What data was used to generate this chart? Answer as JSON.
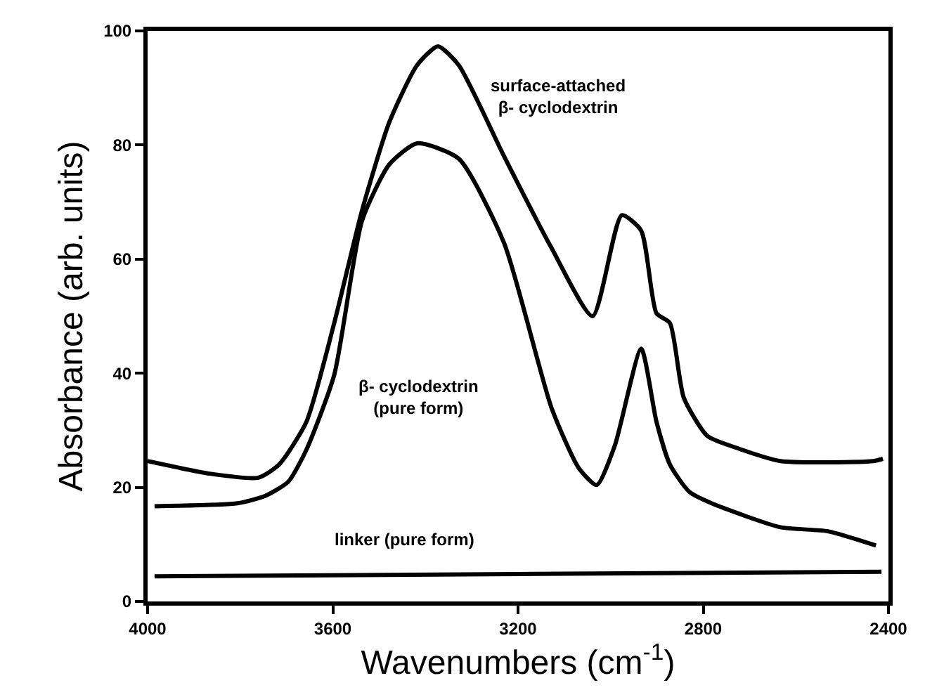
{
  "chart_data": {
    "type": "line",
    "xlabel": "Wavenumbers (cm$^{-1}$)",
    "ylabel": "Absorbance (arb. units)",
    "xlim": [
      4000,
      2400
    ],
    "xticks": [
      4000,
      3600,
      3200,
      2800,
      2400
    ],
    "ylim": [
      0,
      100
    ],
    "yticks": [
      0,
      20,
      40,
      60,
      80,
      100
    ],
    "legend": false,
    "marker": "none",
    "line_style": "solid",
    "series": [
      {
        "name": "surface-attached\nβ- cyclodextrin",
        "color": "#000000",
        "x": [
          4000,
          3866,
          3761,
          3716,
          3657,
          3597,
          3537,
          3478,
          3418,
          3373,
          3328,
          3230,
          3128,
          3039,
          2976,
          2934,
          2901,
          2872,
          2842,
          2791,
          2731,
          2633,
          2433,
          2412
        ],
        "values": [
          24.6,
          22.4,
          21.7,
          24,
          31.5,
          48.8,
          68.5,
          84,
          94,
          97.3,
          94,
          78,
          62,
          50,
          67.7,
          65,
          50.5,
          48.8,
          35.7,
          29,
          27,
          24.6,
          24.6,
          25
        ]
      },
      {
        "name": "β- cyclodextrin\n(pure form)",
        "color": "#000000",
        "x": [
          3985,
          3806,
          3746,
          3696,
          3657,
          3597,
          3537,
          3478,
          3418,
          3328,
          3230,
          3128,
          3069,
          3030,
          2991,
          2934,
          2901,
          2872,
          2830,
          2782,
          2633,
          2531,
          2427
        ],
        "values": [
          16.7,
          17.2,
          18.5,
          21,
          26.6,
          39.7,
          66.7,
          76.6,
          80.3,
          77.6,
          62.8,
          34,
          23.4,
          20.4,
          27.3,
          44.3,
          31.5,
          24,
          19.2,
          17.2,
          13,
          12.3,
          9.8
        ]
      },
      {
        "name": "linker (pure form)",
        "color": "#000000",
        "x": [
          3985,
          3200,
          2415
        ],
        "values": [
          4.4,
          4.8,
          5.2
        ]
      }
    ]
  }
}
